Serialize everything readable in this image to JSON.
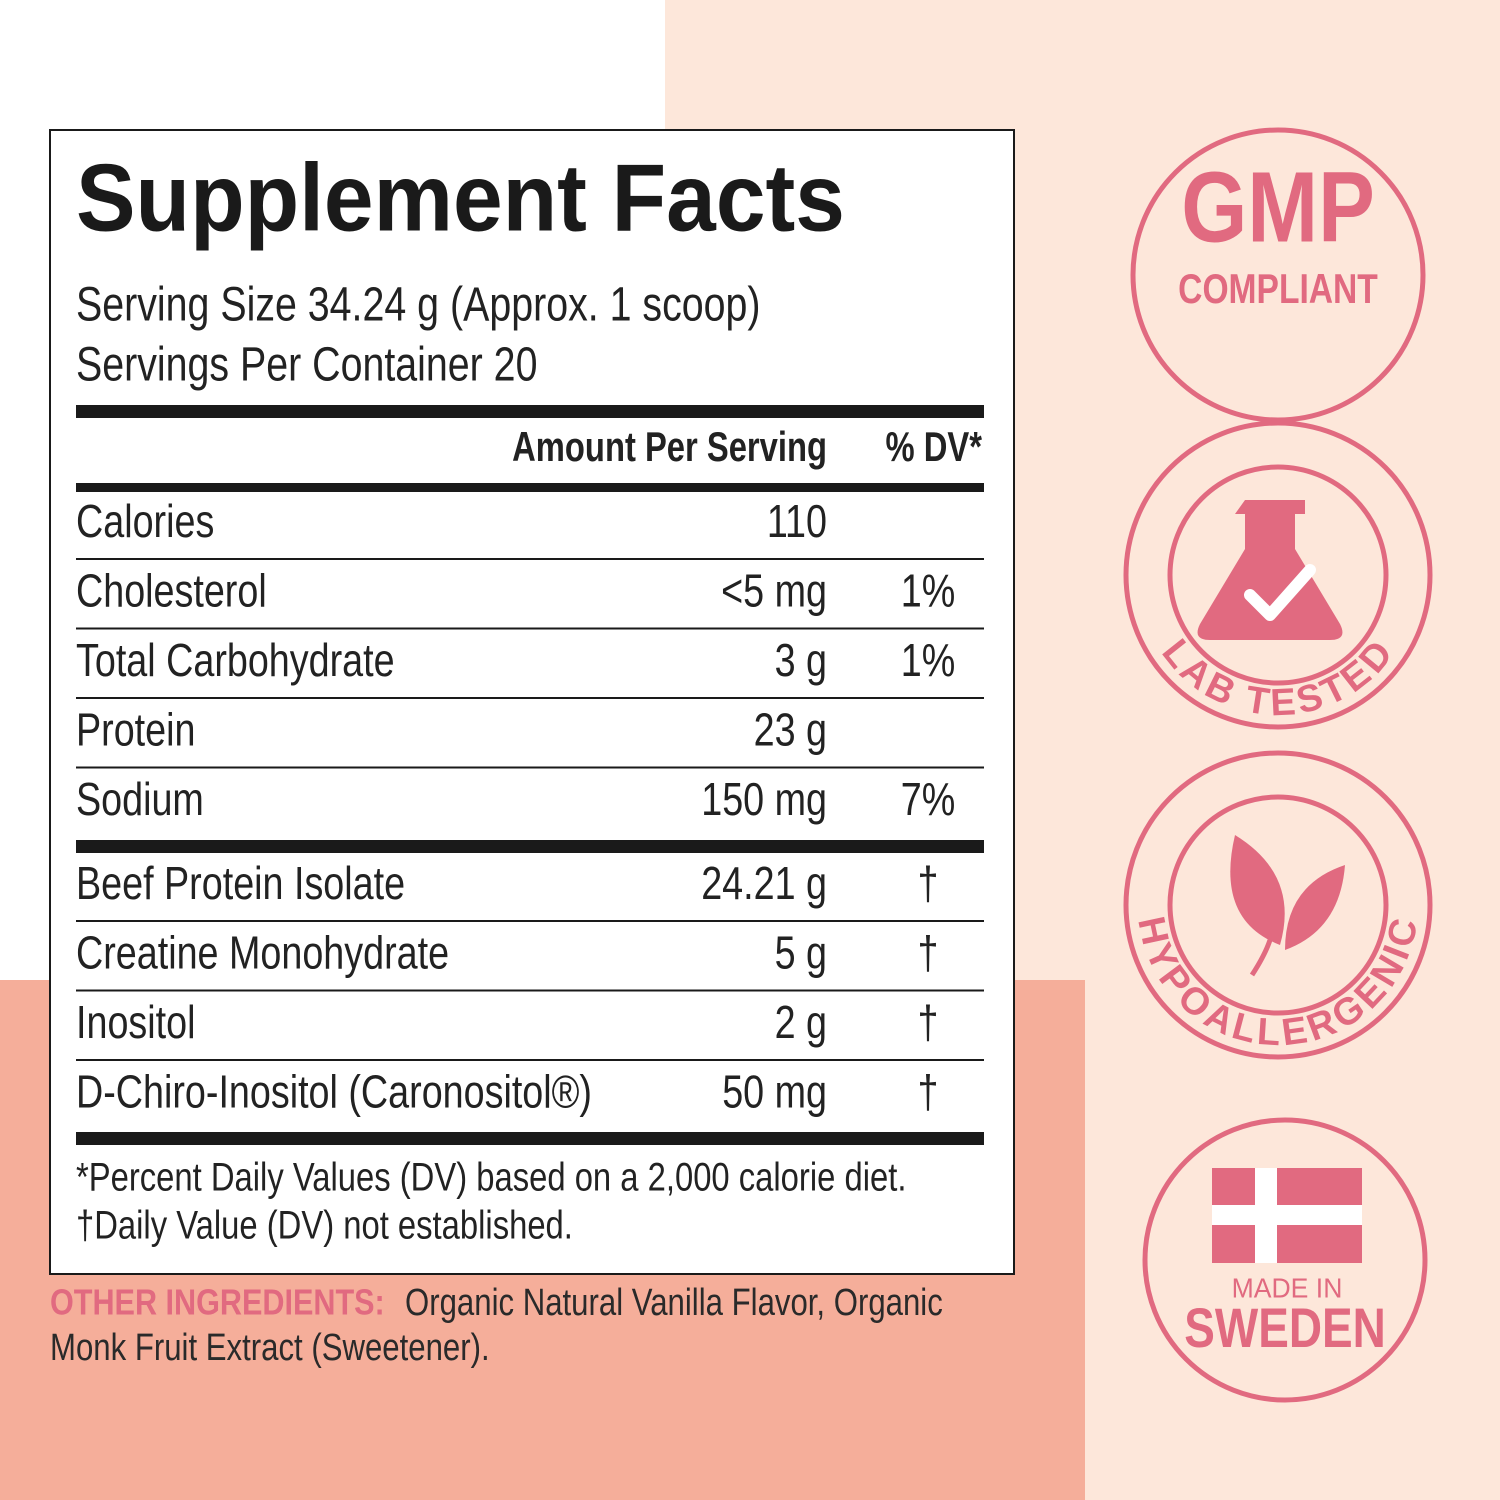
{
  "label": {
    "title": "Supplement Facts",
    "serving_size": "Serving Size 34.24 g (Approx. 1 scoop)",
    "servings_per_container": "Servings Per Container 20",
    "header": {
      "amount": "Amount Per Serving",
      "dv": "% DV*"
    },
    "sections": [
      [
        {
          "name": "Calories",
          "amount": "110"
        },
        {
          "name": "Cholesterol",
          "amount": "<5 mg",
          "dv": "1%"
        },
        {
          "name": "Total Carbohydrate",
          "amount": "3 g",
          "dv": "1%"
        },
        {
          "name": "Protein",
          "amount": "23 g"
        },
        {
          "name": "Sodium",
          "amount": "150 mg",
          "dv": "7%"
        }
      ],
      [
        {
          "name": "Beef Protein Isolate",
          "amount": "24.21 g",
          "dv": "†"
        },
        {
          "name": "Creatine Monohydrate",
          "amount": "5 g",
          "dv": "†"
        },
        {
          "name": "Inositol",
          "amount": "2 g",
          "dv": "†"
        },
        {
          "name": "D-Chiro-Inositol (Caronositol®)",
          "amount": "50 mg",
          "dv": "†"
        }
      ]
    ],
    "footnotes": [
      "*Percent Daily Values (DV) based on a 2,000 calorie diet.",
      "†Daily Value (DV) not established."
    ]
  },
  "other_ingredients": {
    "label": "OTHER INGREDIENTS:",
    "lines": [
      "Organic Natural Vanilla Flavor, Organic",
      "Monk Fruit Extract (Sweetener)."
    ]
  },
  "badges": {
    "gmp": {
      "title": "GMP",
      "subtitle": "COMPLIANT"
    },
    "lab": {
      "text": "LAB TESTED"
    },
    "hypo": {
      "text": "HYPOALLERGENIC"
    },
    "sweden": {
      "small": "MADE IN",
      "title": "SWEDEN"
    }
  }
}
